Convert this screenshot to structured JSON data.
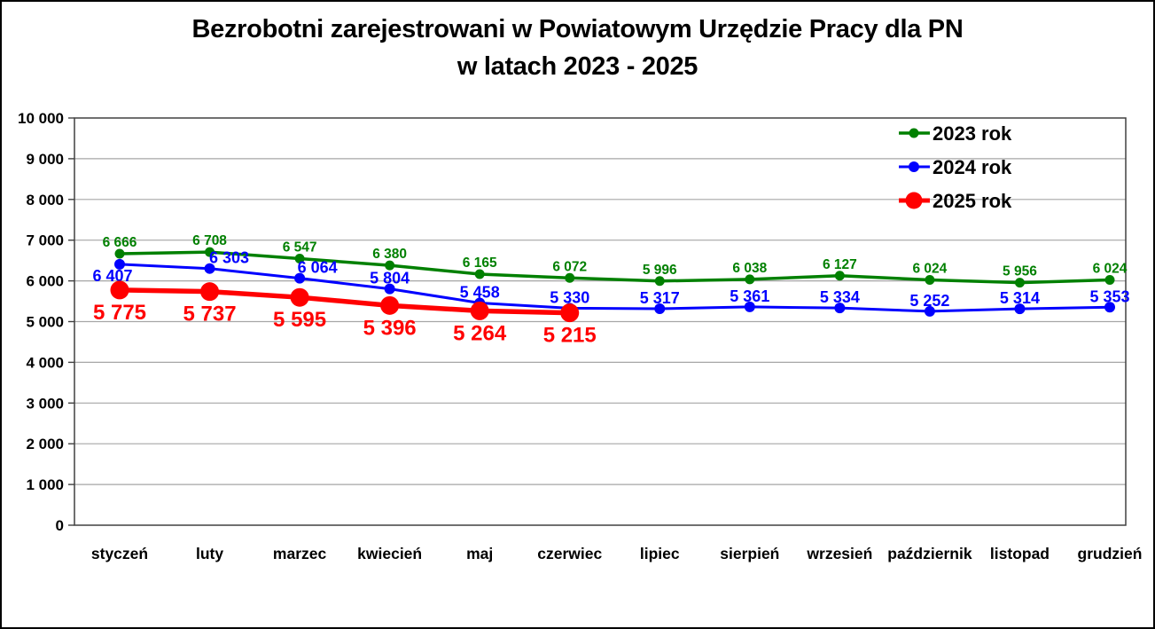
{
  "chart_data": {
    "type": "line",
    "title": "Bezrobotni zarejestrowani w Powiatowym Urzędzie Pracy dla PN",
    "subtitle": "w latach 2023 - 2025",
    "categories": [
      "styczeń",
      "luty",
      "marzec",
      "kwiecień",
      "maj",
      "czerwiec",
      "lipiec",
      "sierpień",
      "wrzesień",
      "październik",
      "listopad",
      "grudzień"
    ],
    "series": [
      {
        "name": "2023 rok",
        "color": "#008000",
        "values": [
          6666,
          6708,
          6547,
          6380,
          6165,
          6072,
          5996,
          6038,
          6127,
          6024,
          5956,
          6024
        ]
      },
      {
        "name": "2024 rok",
        "color": "#0000ff",
        "values": [
          6407,
          6303,
          6064,
          5804,
          5458,
          5330,
          5317,
          5361,
          5334,
          5252,
          5314,
          5353
        ]
      },
      {
        "name": "2025 rok",
        "color": "#ff0000",
        "values": [
          5775,
          5737,
          5595,
          5396,
          5264,
          5215,
          null,
          null,
          null,
          null,
          null,
          null
        ]
      }
    ],
    "ylim": [
      0,
      10000
    ],
    "ytick_step": 1000,
    "grid": "horizontal",
    "legend_position": "top-right",
    "data_labels": true,
    "colors": {
      "gridline": "#a6a6a6",
      "axis_frame": "#404040",
      "text": "#000000",
      "background": "#ffffff"
    }
  }
}
